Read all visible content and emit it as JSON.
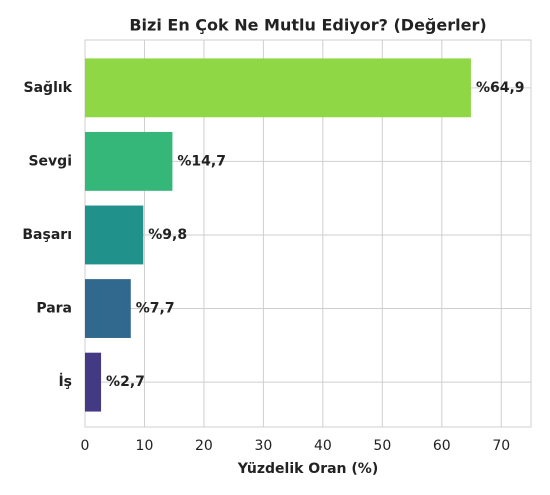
{
  "chart_data": {
    "type": "barh",
    "title": "Bizi En Çok Ne Mutlu Ediyor? (Değerler)",
    "x_label": "Yüzdelik Oran (%)",
    "categories": [
      "Sağlık",
      "Sevgi",
      "Başarı",
      "Para",
      "İş"
    ],
    "values": [
      64.9,
      14.7,
      9.8,
      7.7,
      2.7
    ],
    "value_labels": [
      "%64,9",
      "%14,7",
      "%9,8",
      "%7,7",
      "%2,7"
    ],
    "colors": [
      "#8fd744",
      "#35b779",
      "#21918c",
      "#31688e",
      "#443983"
    ],
    "xlim": [
      0,
      75
    ],
    "xticks": [
      0,
      10,
      20,
      30,
      40,
      50,
      60,
      70
    ],
    "grid": true
  }
}
